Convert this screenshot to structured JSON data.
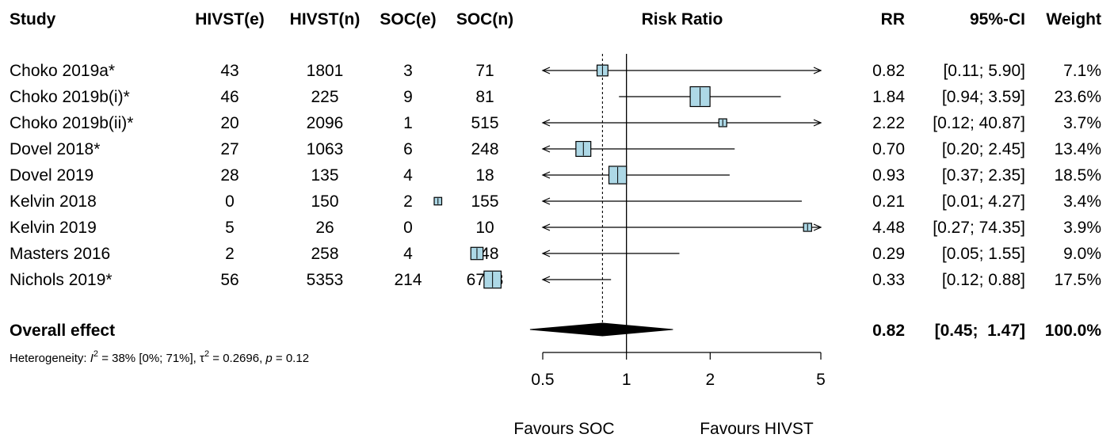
{
  "chart_data": {
    "type": "forest",
    "measure": "Risk Ratio",
    "scale": "log",
    "xlim": [
      0.5,
      5
    ],
    "ticks": [
      0.5,
      1,
      2,
      5
    ],
    "tick_labels": [
      "0.5",
      "1",
      "2",
      "5"
    ],
    "reference_line": 1,
    "columns": [
      "Study",
      "HIVST(e)",
      "HIVST(n)",
      "SOC(e)",
      "SOC(n)",
      "Risk Ratio",
      "RR",
      "95%-CI",
      "Weight"
    ],
    "studies": [
      {
        "study": "Choko 2019a*",
        "hivst_e": "43",
        "hivst_n": "1801",
        "soc_e": "3",
        "soc_n": "71",
        "rr": 0.82,
        "lower": 0.11,
        "upper": 5.9,
        "rr_text": "0.82",
        "ci_text": "[0.11;  5.90]",
        "weight_text": "7.1%",
        "weight": 7.1
      },
      {
        "study": "Choko 2019b(i)*",
        "hivst_e": "46",
        "hivst_n": "225",
        "soc_e": "9",
        "soc_n": "81",
        "rr": 1.84,
        "lower": 0.94,
        "upper": 3.59,
        "rr_text": "1.84",
        "ci_text": "[0.94;  3.59]",
        "weight_text": "23.6%",
        "weight": 23.6
      },
      {
        "study": "Choko 2019b(ii)*",
        "hivst_e": "20",
        "hivst_n": "2096",
        "soc_e": "1",
        "soc_n": "515",
        "rr": 2.22,
        "lower": 0.12,
        "upper": 40.87,
        "rr_text": "2.22",
        "ci_text": "[0.12; 40.87]",
        "weight_text": "3.7%",
        "weight": 3.7
      },
      {
        "study": "Dovel 2018*",
        "hivst_e": "27",
        "hivst_n": "1063",
        "soc_e": "6",
        "soc_n": "248",
        "rr": 0.7,
        "lower": 0.2,
        "upper": 2.45,
        "rr_text": "0.70",
        "ci_text": "[0.20;  2.45]",
        "weight_text": "13.4%",
        "weight": 13.4
      },
      {
        "study": "Dovel 2019",
        "hivst_e": "28",
        "hivst_n": "135",
        "soc_e": "4",
        "soc_n": "18",
        "rr": 0.93,
        "lower": 0.37,
        "upper": 2.35,
        "rr_text": "0.93",
        "ci_text": "[0.37;  2.35]",
        "weight_text": "18.5%",
        "weight": 18.5
      },
      {
        "study": "Kelvin 2018",
        "hivst_e": "0",
        "hivst_n": "150",
        "soc_e": "2",
        "soc_n": "155",
        "rr": 0.21,
        "lower": 0.01,
        "upper": 4.27,
        "rr_text": "0.21",
        "ci_text": "[0.01;  4.27]",
        "weight_text": "3.4%",
        "weight": 3.4
      },
      {
        "study": "Kelvin 2019",
        "hivst_e": "5",
        "hivst_n": "26",
        "soc_e": "0",
        "soc_n": "10",
        "rr": 4.48,
        "lower": 0.27,
        "upper": 74.35,
        "rr_text": "4.48",
        "ci_text": "[0.27; 74.35]",
        "weight_text": "3.9%",
        "weight": 3.9
      },
      {
        "study": "Masters 2016",
        "hivst_e": "2",
        "hivst_n": "258",
        "soc_e": "4",
        "soc_n": "148",
        "rr": 0.29,
        "lower": 0.05,
        "upper": 1.55,
        "rr_text": "0.29",
        "ci_text": "[0.05;  1.55]",
        "weight_text": "9.0%",
        "weight": 9.0
      },
      {
        "study": "Nichols 2019*",
        "hivst_e": "56",
        "hivst_n": "5353",
        "soc_e": "214",
        "soc_n": "6728",
        "rr": 0.33,
        "lower": 0.12,
        "upper": 0.88,
        "rr_text": "0.33",
        "ci_text": "[0.12;  0.88]",
        "weight_text": "17.5%",
        "weight": 17.5
      }
    ],
    "overall": {
      "label": "Overall effect",
      "rr": 0.82,
      "lower": 0.45,
      "upper": 1.47,
      "rr_text": "0.82",
      "ci_text": "[0.45;  1.47]",
      "weight_text": "100.0%"
    },
    "heterogeneity": {
      "prefix": "Heterogeneity: ",
      "i2_symbol": "I",
      "i2_sup": "2",
      "i2_text": " = 38% [0%; 71%], ",
      "tau_symbol": "τ",
      "tau_sup": "2",
      "tau_text": " = 0.2696, ",
      "p_symbol": "p",
      "p_text": " = 0.12"
    },
    "favours_left": "Favours SOC",
    "favours_right": "Favours HIVST",
    "colors": {
      "box_fill": "#add8e6",
      "box_stroke": "#000000",
      "diamond": "#000000",
      "line": "#000000"
    }
  }
}
